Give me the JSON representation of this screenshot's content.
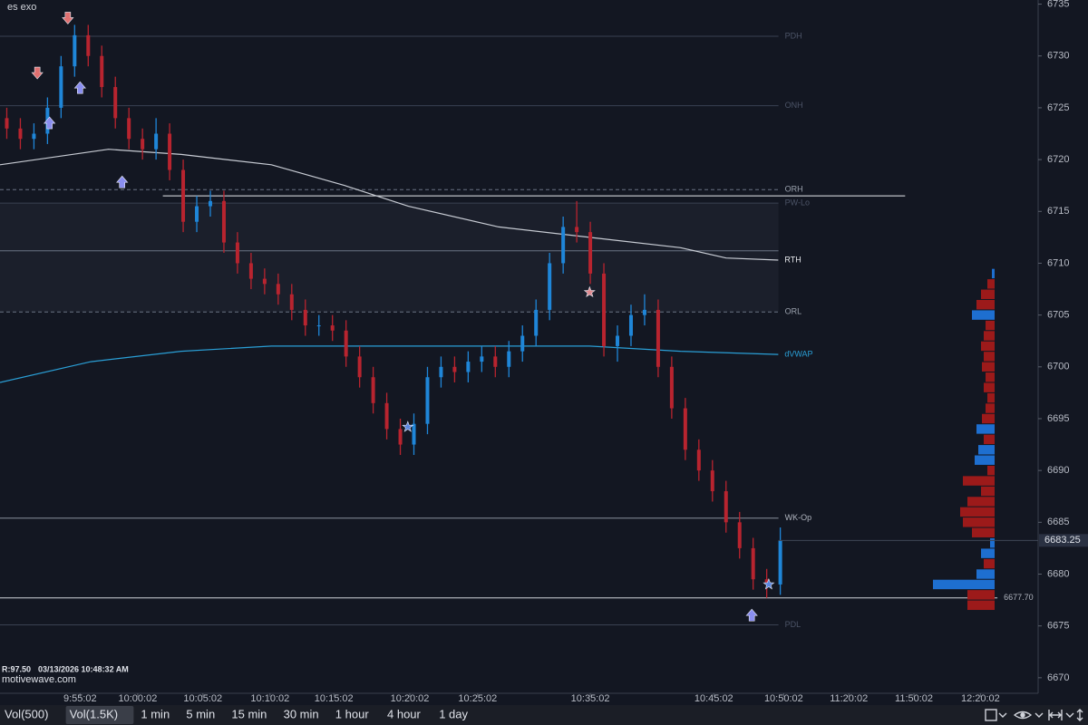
{
  "header": {
    "symbol": "es exo"
  },
  "footer": {
    "info": "R:97.50",
    "timestamp": "03/13/2026 10:48:32 AM",
    "site": "motivewave.com"
  },
  "toolbar": {
    "tabs": [
      "Vol(500)",
      "Vol(1.5K)",
      "1 min",
      "5 min",
      "15 min",
      "30 min",
      "1 hour",
      "4 hour",
      "1 day"
    ],
    "selected": 1
  },
  "chart_data": {
    "type": "candlestick",
    "x": [
      1,
      3,
      5,
      7,
      9,
      11,
      13,
      15,
      17,
      19,
      21,
      23,
      25,
      27,
      29,
      31,
      33,
      35,
      37,
      39,
      41,
      43,
      45,
      47,
      49,
      51,
      53,
      55,
      57,
      59,
      61,
      63,
      65,
      67,
      69,
      71,
      73,
      75,
      77,
      79,
      81,
      83,
      85,
      87,
      89,
      91,
      93,
      95,
      97,
      99,
      101,
      103,
      105,
      107,
      109,
      111,
      113,
      115
    ],
    "open": [
      6724,
      6723,
      6722,
      6722.5,
      6725,
      6729,
      6732,
      6730,
      6727,
      6724,
      6722,
      6721,
      6722.5,
      6719,
      6714,
      6715.5,
      6716,
      6712,
      6710,
      6708.5,
      6708,
      6707,
      6705.5,
      6704,
      6704,
      6703.5,
      6701,
      6699,
      6696.5,
      6694,
      6692.5,
      6694.5,
      6699,
      6700,
      6699.5,
      6700.5,
      6701,
      6700,
      6701.5,
      6703,
      6705.5,
      6710,
      6713.5,
      6713,
      6709,
      6702,
      6703,
      6705,
      6705.5,
      6700,
      6696,
      6692,
      6690,
      6688,
      6685,
      6682.5,
      6679.5,
      6679
    ],
    "high": [
      6725,
      6724,
      6723.5,
      6726,
      6730,
      6733,
      6733,
      6731,
      6728,
      6725,
      6723,
      6724,
      6723.5,
      6720,
      6716.5,
      6717,
      6717,
      6713,
      6711,
      6709.5,
      6709,
      6708,
      6706.5,
      6705,
      6705,
      6704.5,
      6702,
      6700,
      6697.5,
      6695,
      6695.5,
      6700,
      6701,
      6701,
      6701.5,
      6702,
      6702,
      6702.5,
      6704,
      6706.5,
      6711,
      6714.5,
      6716,
      6714,
      6710,
      6704,
      6706,
      6707,
      6706.5,
      6701,
      6697,
      6693,
      6691,
      6689,
      6686,
      6683.5,
      6680.5,
      6684.5
    ],
    "low": [
      6722,
      6721,
      6721,
      6721.5,
      6724,
      6728,
      6729,
      6726,
      6723,
      6721,
      6720,
      6720,
      6718,
      6713,
      6713,
      6714.5,
      6711,
      6709,
      6707.5,
      6707,
      6706,
      6704.5,
      6703,
      6703,
      6702.5,
      6700,
      6698,
      6695.5,
      6693,
      6691.5,
      6691.5,
      6693.5,
      6698,
      6698.5,
      6698.5,
      6699.5,
      6699,
      6699,
      6700.5,
      6702,
      6704.5,
      6709,
      6712,
      6708,
      6701,
      6700.5,
      6702,
      6704,
      6699,
      6695,
      6691,
      6689,
      6687,
      6684,
      6681.5,
      6678.5,
      6677.7,
      6678
    ],
    "close": [
      6723,
      6722,
      6722.5,
      6725,
      6729,
      6732,
      6730,
      6727,
      6724,
      6722,
      6721,
      6722.5,
      6719,
      6714,
      6715.5,
      6716,
      6712,
      6710,
      6708.5,
      6708,
      6707,
      6705.5,
      6704,
      6704,
      6703.5,
      6701,
      6699,
      6696.5,
      6694,
      6692.5,
      6694.5,
      6699,
      6700,
      6699.5,
      6700.5,
      6701,
      6700,
      6701.5,
      6703,
      6705.5,
      6710,
      6713.5,
      6713,
      6709,
      6702,
      6703,
      6705,
      6705.5,
      6700,
      6696,
      6692,
      6690,
      6688,
      6685,
      6682.5,
      6679.5,
      6679,
      6683.25
    ],
    "up_color": "#1f86d8",
    "down_color": "#b8242f",
    "xlim": [
      0,
      153
    ],
    "xticks": [
      {
        "value": 11.8,
        "label": "9:55:02"
      },
      {
        "value": 20.3,
        "label": "10:00:02"
      },
      {
        "value": 29.9,
        "label": "10:05:02"
      },
      {
        "value": 39.8,
        "label": "10:10:02"
      },
      {
        "value": 49.2,
        "label": "10:15:02"
      },
      {
        "value": 60.4,
        "label": "10:20:02"
      },
      {
        "value": 70.4,
        "label": "10:25:02"
      },
      {
        "value": 87,
        "label": "10:35:02"
      },
      {
        "value": 105.2,
        "label": "10:45:02"
      },
      {
        "value": 115.5,
        "label": "10:50:02"
      },
      {
        "value": 125.1,
        "label": "11:20:02"
      },
      {
        "value": 134.7,
        "label": "11:50:02"
      },
      {
        "value": 144.5,
        "label": "12:20:02"
      }
    ],
    "ylim": [
      6668.5,
      6735.4
    ],
    "yticks": [
      6670,
      6675,
      6680,
      6685,
      6690,
      6695,
      6700,
      6705,
      6710,
      6715,
      6720,
      6725,
      6730,
      6735
    ],
    "last_price": 6683.25,
    "lines": [
      {
        "name": "RTH",
        "color": "#c8ccd4",
        "x": [
          0,
          16,
          26.7,
          40,
          50.8,
          60.2,
          73.5,
          86.9,
          100.3,
          107,
          114.7
        ],
        "values": [
          6719.5,
          6721,
          6720.5,
          6719.5,
          6717.5,
          6715.5,
          6713.5,
          6712.5,
          6711.5,
          6710.5,
          6710.3
        ]
      },
      {
        "name": "dVWAP",
        "color": "#2a9fd6",
        "x": [
          0,
          13.4,
          26.7,
          40,
          60.2,
          86.9,
          100.3,
          114.7
        ],
        "values": [
          6698.5,
          6700.5,
          6701.5,
          6702,
          6702,
          6702,
          6701.5,
          6701.2
        ]
      }
    ],
    "levels": [
      {
        "label": "PDH",
        "value": 6731.9,
        "color": "#3a4152",
        "label_color": "#4c5467"
      },
      {
        "label": "ONH",
        "value": 6725.2,
        "color": "#3a4152",
        "label_color": "#4c5467"
      },
      {
        "label": "ORH",
        "value": 6717.1,
        "color": "#6a7283",
        "label_color": "#9aa1ad",
        "dashed": true
      },
      {
        "value": 6716.5,
        "color": "#e8eaee",
        "x_range": [
          24,
          133.4
        ]
      },
      {
        "label": "PW-Lo",
        "value": 6715.8,
        "color": "#3a4152",
        "label_color": "#4c5467"
      },
      {
        "value": 6711.2,
        "color": "#6a7283"
      },
      {
        "label": "ORL",
        "value": 6705.3,
        "color": "#6a7283",
        "label_color": "#9aa1ad",
        "dashed": true
      },
      {
        "label": "WK-Op",
        "value": 6685.4,
        "color": "#8a909c",
        "label_color": "#b0b5bf"
      },
      {
        "label": "6677.70",
        "value": 6677.7,
        "color": "#d0d3d9",
        "label_color": "#b0b5bf",
        "x_range": [
          0,
          147
        ]
      },
      {
        "label": "PDL",
        "value": 6675.1,
        "color": "#3a4152",
        "label_color": "#4c5467"
      }
    ],
    "markers": [
      {
        "x": 10,
        "price": 6733.7,
        "shape": "arrow-down",
        "color": "#e07070"
      },
      {
        "x": 5.5,
        "price": 6728.4,
        "shape": "arrow-down",
        "color": "#e07070"
      },
      {
        "x": 7.3,
        "price": 6723.5,
        "shape": "arrow-up",
        "color": "#8a8ef0"
      },
      {
        "x": 11.8,
        "price": 6726.9,
        "shape": "arrow-up",
        "color": "#8a8ef0"
      },
      {
        "x": 18,
        "price": 6717.8,
        "shape": "arrow-up",
        "color": "#8a8ef0"
      },
      {
        "x": 110.8,
        "price": 6676,
        "shape": "arrow-up",
        "color": "#8a8ef0"
      },
      {
        "x": 60.1,
        "price": 6694.2,
        "shape": "star",
        "color": "#5a86e0"
      },
      {
        "x": 86.9,
        "price": 6707.2,
        "shape": "star",
        "color": "#e08a90"
      },
      {
        "x": 113.3,
        "price": 6679,
        "shape": "star",
        "color": "#5a86e0"
      }
    ],
    "volume_profile": {
      "prices": [
        6709,
        6708,
        6707,
        6706,
        6705,
        6704,
        6703,
        6702,
        6701,
        6700,
        6699,
        6698,
        6697,
        6696,
        6695,
        6694,
        6693,
        6692,
        6691,
        6690,
        6689,
        6688,
        6687,
        6686,
        6685,
        6684,
        6683,
        6682,
        6681,
        6680,
        6679,
        6678,
        6677
      ],
      "values": [
        3,
        8,
        15,
        20,
        25,
        10,
        12,
        15,
        12,
        14,
        10,
        12,
        8,
        10,
        14,
        20,
        12,
        18,
        22,
        8,
        35,
        15,
        30,
        38,
        35,
        25,
        5,
        15,
        12,
        20,
        68,
        30,
        30
      ],
      "colors": [
        "#1e6fd0",
        "#9c1a1a",
        "#9c1a1a",
        "#9c1a1a",
        "#1e6fd0",
        "#9c1a1a",
        "#9c1a1a",
        "#9c1a1a",
        "#9c1a1a",
        "#9c1a1a",
        "#9c1a1a",
        "#9c1a1a",
        "#9c1a1a",
        "#9c1a1a",
        "#9c1a1a",
        "#1e6fd0",
        "#9c1a1a",
        "#1e6fd0",
        "#1e6fd0",
        "#9c1a1a",
        "#9c1a1a",
        "#9c1a1a",
        "#9c1a1a",
        "#9c1a1a",
        "#9c1a1a",
        "#9c1a1a",
        "#1e6fd0",
        "#1e6fd0",
        "#9c1a1a",
        "#1e6fd0",
        "#1e6fd0",
        "#9c1a1a",
        "#9c1a1a"
      ]
    }
  }
}
